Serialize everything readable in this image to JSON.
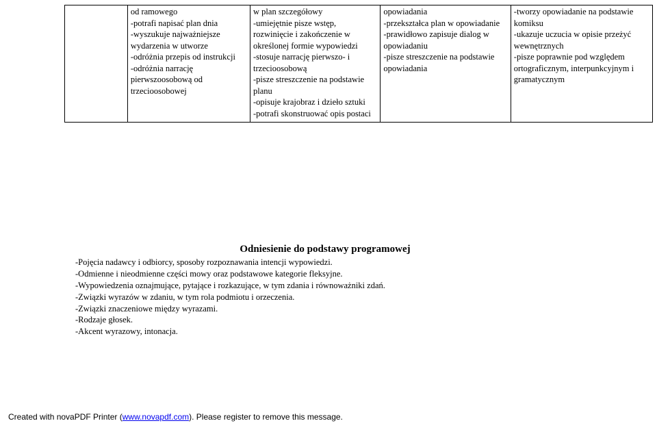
{
  "table": {
    "cells": {
      "c1": "",
      "c2": "od ramowego\n-potrafi napisać plan dnia\n-wyszukuje najważniejsze wydarzenia w utworze\n-odróżnia przepis od instrukcji\n-odróżnia narrację pierwszoosobową od trzecioosobowej",
      "c3": "w plan szczegółowy\n-umiejętnie pisze wstęp, rozwinięcie i zakończenie w określonej formie wypowiedzi\n-stosuje narrację pierwszo- i trzecioosobową\n-pisze streszczenie na podstawie planu\n-opisuje krajobraz i dzieło sztuki\n-potrafi skonstruować opis postaci",
      "c4": "opowiadania\n-przekształca plan w opowiadanie\n-prawidłowo zapisuje dialog w opowiadaniu\n-pisze streszczenie na podstawie opowiadania",
      "c5": "-tworzy opowiadanie na podstawie komiksu\n-ukazuje uczucia w opisie przeżyć wewnętrznych\n-pisze poprawnie pod względem ortograficznym, interpunkcyjnym i gramatycznym"
    }
  },
  "section": {
    "heading": "Odniesienie do podstawy programowej",
    "lines": [
      "-Pojęcia nadawcy i odbiorcy, sposoby rozpoznawania intencji wypowiedzi.",
      "-Odmienne i nieodmienne części mowy oraz podstawowe kategorie fleksyjne.",
      "-Wypowiedzenia oznajmujące, pytające i rozkazujące, w tym zdania i równoważniki zdań.",
      "-Związki wyrazów w zdaniu, w tym rola podmiotu i orzeczenia.",
      "-Związki znaczeniowe między wyrazami.",
      "-Rodzaje głosek.",
      "-Akcent wyrazowy, intonacja."
    ]
  },
  "footer": {
    "prefix": "Created with novaPDF Printer (",
    "link_text": "www.novapdf.com",
    "suffix": "). Please register to remove this message."
  }
}
